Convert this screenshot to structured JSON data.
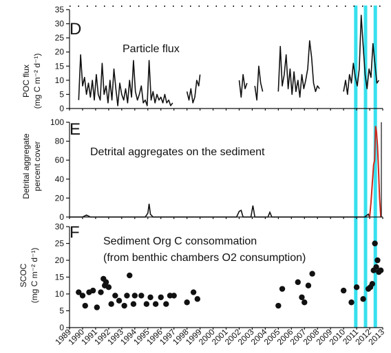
{
  "x_tick_labels": [
    "1989",
    "1990",
    "1991",
    "1992",
    "1993",
    "1994",
    "1995",
    "1996",
    "1997",
    "1998",
    "1999",
    "2000",
    "2001",
    "2002",
    "2003",
    "2004",
    "2005",
    "2006",
    "2007",
    "2008",
    "2009",
    "2010",
    "2011",
    "2012",
    "2013"
  ],
  "highlight_color": "#38e0ee",
  "chart_data": [
    {
      "type": "line",
      "panel_letter": "D",
      "annotation": "Particle flux",
      "ylabel_line1": "POC flux",
      "ylabel_line2": "(mg C m⁻² d⁻¹)",
      "ylim": [
        0,
        35
      ],
      "xlim": [
        1989,
        2013
      ],
      "yticks": [
        0,
        5,
        10,
        15,
        20,
        25,
        30,
        35
      ],
      "highlight_bands": [
        [
          2010.8,
          2011.0
        ],
        [
          2011.55,
          2011.7
        ],
        [
          2012.3,
          2012.5
        ]
      ],
      "segments": [
        [
          [
            1989.7,
            3
          ],
          [
            1989.85,
            19
          ],
          [
            1990.0,
            8
          ],
          [
            1990.15,
            11
          ],
          [
            1990.3,
            5
          ],
          [
            1990.45,
            9
          ],
          [
            1990.6,
            4
          ],
          [
            1990.75,
            10
          ],
          [
            1990.9,
            3
          ],
          [
            1991.05,
            12
          ],
          [
            1991.2,
            5
          ],
          [
            1991.35,
            3
          ],
          [
            1991.5,
            16
          ],
          [
            1991.65,
            5
          ],
          [
            1991.8,
            8
          ],
          [
            1991.95,
            2
          ],
          [
            1992.1,
            10
          ],
          [
            1992.25,
            3
          ],
          [
            1992.4,
            14
          ],
          [
            1992.55,
            7
          ],
          [
            1992.7,
            1
          ],
          [
            1992.85,
            9
          ],
          [
            1993.0,
            5
          ],
          [
            1993.15,
            3
          ],
          [
            1993.3,
            7
          ],
          [
            1993.45,
            2
          ],
          [
            1993.6,
            10
          ],
          [
            1993.75,
            4
          ],
          [
            1993.9,
            17
          ],
          [
            1994.05,
            6
          ],
          [
            1994.2,
            3
          ],
          [
            1994.35,
            5
          ],
          [
            1994.5,
            8
          ],
          [
            1994.65,
            2
          ],
          [
            1994.8,
            3
          ],
          [
            1994.95,
            1
          ],
          [
            1995.1,
            17
          ],
          [
            1995.25,
            3
          ],
          [
            1995.4,
            6
          ],
          [
            1995.55,
            2
          ],
          [
            1995.7,
            5
          ],
          [
            1995.85,
            3
          ],
          [
            1996.0,
            4
          ],
          [
            1996.15,
            2
          ],
          [
            1996.3,
            5
          ],
          [
            1996.45,
            2
          ],
          [
            1996.6,
            3
          ],
          [
            1996.75,
            1
          ],
          [
            1996.9,
            2
          ]
        ],
        [
          [
            1998.0,
            6
          ],
          [
            1998.15,
            3
          ],
          [
            1998.3,
            7
          ],
          [
            1998.45,
            2
          ],
          [
            1998.6,
            4
          ],
          [
            1998.75,
            10
          ],
          [
            1998.9,
            8
          ],
          [
            1999.0,
            12
          ]
        ],
        [
          [
            2002.0,
            10
          ],
          [
            2002.15,
            4
          ],
          [
            2002.3,
            12
          ],
          [
            2002.45,
            7
          ],
          [
            2002.6,
            9
          ]
        ],
        [
          [
            2003.2,
            8
          ],
          [
            2003.35,
            3
          ],
          [
            2003.5,
            15
          ],
          [
            2003.65,
            9
          ],
          [
            2003.8,
            6
          ]
        ],
        [
          [
            2005.0,
            6
          ],
          [
            2005.15,
            22
          ],
          [
            2005.3,
            8
          ],
          [
            2005.45,
            12
          ],
          [
            2005.6,
            19
          ],
          [
            2005.75,
            7
          ],
          [
            2005.9,
            14
          ],
          [
            2006.05,
            5
          ],
          [
            2006.2,
            13
          ],
          [
            2006.35,
            6
          ],
          [
            2006.5,
            10
          ],
          [
            2006.65,
            4
          ],
          [
            2006.8,
            12
          ],
          [
            2006.95,
            7
          ],
          [
            2007.1,
            10
          ],
          [
            2007.25,
            14
          ],
          [
            2007.4,
            24
          ],
          [
            2007.55,
            18
          ],
          [
            2007.7,
            9
          ],
          [
            2007.85,
            6
          ],
          [
            2008.0,
            8
          ],
          [
            2008.15,
            7
          ]
        ],
        [
          [
            2010.0,
            6
          ],
          [
            2010.15,
            10
          ],
          [
            2010.3,
            5
          ],
          [
            2010.45,
            12
          ],
          [
            2010.6,
            9
          ],
          [
            2010.75,
            16
          ],
          [
            2010.9,
            11
          ],
          [
            2011.05,
            8
          ],
          [
            2011.2,
            14
          ],
          [
            2011.35,
            33
          ],
          [
            2011.5,
            22
          ],
          [
            2011.65,
            12
          ],
          [
            2011.8,
            7
          ],
          [
            2011.95,
            14
          ],
          [
            2012.1,
            11
          ],
          [
            2012.25,
            23
          ],
          [
            2012.4,
            16
          ],
          [
            2012.55,
            9
          ],
          [
            2012.7,
            10
          ]
        ]
      ]
    },
    {
      "type": "line",
      "panel_letter": "E",
      "annotation": "Detrital aggregates on the sediment",
      "ylabel_line1": "Detrital aggregate",
      "ylabel_line2": "percent cover",
      "ylim": [
        0,
        100
      ],
      "xlim": [
        1989,
        2013
      ],
      "yticks": [
        0,
        20,
        40,
        60,
        80,
        100
      ],
      "baseline_series": [
        [
          1989,
          0
        ],
        [
          1990.0,
          0
        ],
        [
          1990.3,
          2
        ],
        [
          1990.6,
          0
        ],
        [
          1994.8,
          0
        ],
        [
          1995.0,
          4
        ],
        [
          1995.1,
          14
        ],
        [
          1995.2,
          3
        ],
        [
          1995.4,
          0
        ],
        [
          2001.8,
          0
        ],
        [
          2002.0,
          6
        ],
        [
          2002.15,
          7
        ],
        [
          2002.3,
          0
        ],
        [
          2002.9,
          0
        ],
        [
          2003.05,
          12
        ],
        [
          2003.2,
          0
        ],
        [
          2004.2,
          0
        ],
        [
          2004.35,
          5
        ],
        [
          2004.5,
          0
        ],
        [
          2011.6,
          0
        ],
        [
          2011.9,
          3
        ],
        [
          2012.0,
          0
        ]
      ],
      "red_series": [
        [
          2012.0,
          0
        ],
        [
          2012.1,
          15
        ],
        [
          2012.2,
          35
        ],
        [
          2012.3,
          55
        ],
        [
          2012.38,
          60
        ],
        [
          2012.45,
          96
        ],
        [
          2012.52,
          90
        ],
        [
          2012.6,
          75
        ],
        [
          2012.68,
          50
        ],
        [
          2012.76,
          20
        ],
        [
          2012.85,
          0
        ]
      ],
      "red_color": "#cc2a1e"
    },
    {
      "type": "scatter",
      "panel_letter": "F",
      "annotation_line1": "Sediment Org C consommation",
      "annotation_line2": "(from benthic chambers O2 consumption)",
      "ylabel_line1": "SCOC",
      "ylabel_line2": "(mg C m⁻² d⁻¹)",
      "ylim": [
        0,
        30
      ],
      "xlim": [
        1989,
        2013
      ],
      "yticks": [
        0,
        5,
        10,
        15,
        20,
        25,
        30
      ],
      "points": [
        [
          1989.7,
          10.5
        ],
        [
          1990.0,
          9.5
        ],
        [
          1990.2,
          6.5
        ],
        [
          1990.5,
          10.5
        ],
        [
          1990.8,
          11
        ],
        [
          1991.1,
          6
        ],
        [
          1991.4,
          10.5
        ],
        [
          1991.6,
          14.5
        ],
        [
          1991.7,
          12.5
        ],
        [
          1991.8,
          13.5
        ],
        [
          1992.0,
          12
        ],
        [
          1992.2,
          7
        ],
        [
          1992.5,
          9.5
        ],
        [
          1992.8,
          8
        ],
        [
          1993.2,
          6.5
        ],
        [
          1993.4,
          9.5
        ],
        [
          1993.6,
          15.5
        ],
        [
          1993.9,
          7
        ],
        [
          1994.0,
          9.5
        ],
        [
          1994.5,
          9.5
        ],
        [
          1994.9,
          7
        ],
        [
          1995.2,
          9
        ],
        [
          1995.6,
          7
        ],
        [
          1996.0,
          9
        ],
        [
          1996.4,
          7
        ],
        [
          1996.7,
          9.5
        ],
        [
          1997.0,
          9.5
        ],
        [
          1998.0,
          7.5
        ],
        [
          1998.5,
          10.5
        ],
        [
          1998.8,
          8.5
        ],
        [
          2005.0,
          6.5
        ],
        [
          2005.3,
          11.5
        ],
        [
          2006.5,
          13.5
        ],
        [
          2006.8,
          9
        ],
        [
          2007.0,
          7.5
        ],
        [
          2007.3,
          12.5
        ],
        [
          2007.6,
          16
        ],
        [
          2010.0,
          11
        ],
        [
          2010.6,
          7.5
        ],
        [
          2011.0,
          12
        ],
        [
          2011.5,
          8.5
        ],
        [
          2011.9,
          11.5
        ],
        [
          2012.05,
          12
        ],
        [
          2012.2,
          13
        ],
        [
          2012.3,
          17
        ],
        [
          2012.4,
          25
        ],
        [
          2012.5,
          18
        ],
        [
          2012.6,
          20
        ],
        [
          2012.7,
          16.5
        ],
        [
          2012.85,
          17
        ]
      ]
    }
  ]
}
